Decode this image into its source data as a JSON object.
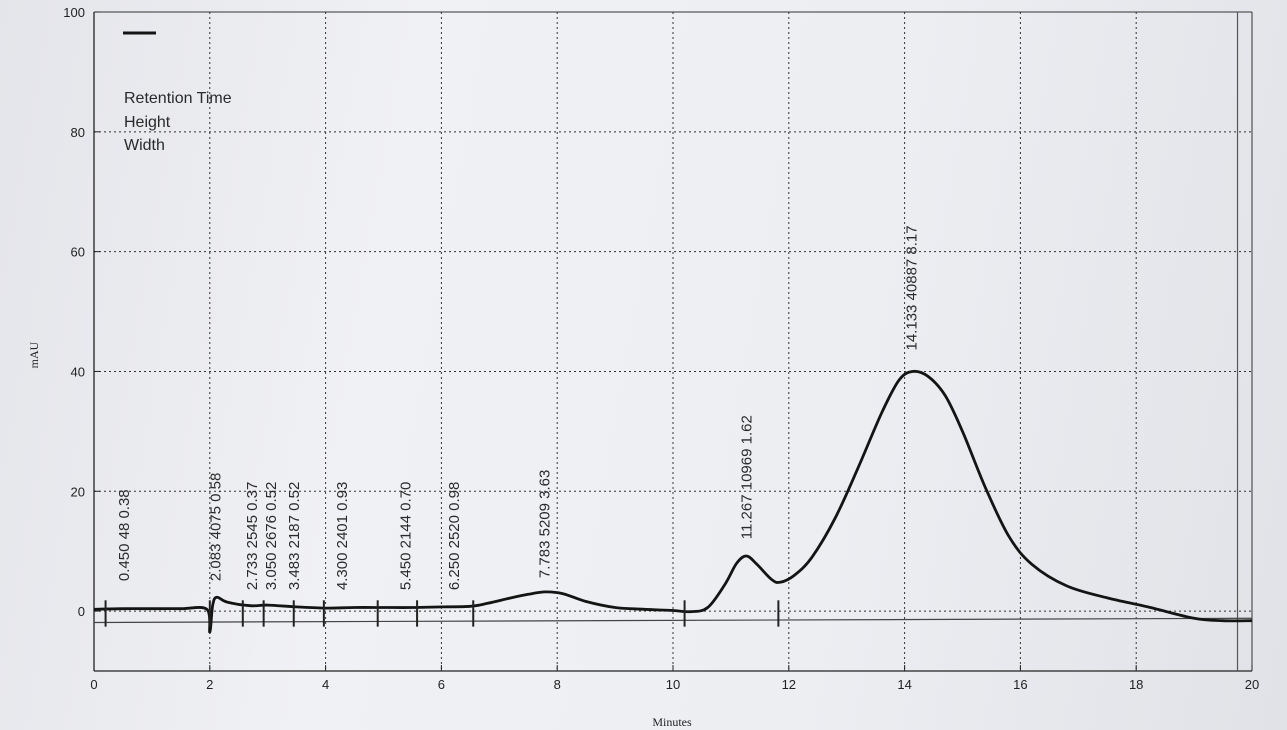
{
  "chart_data": {
    "type": "line",
    "xlabel": "Minutes",
    "ylabel": "mAU",
    "xlim": [
      0,
      20
    ],
    "ylim": [
      -10,
      100
    ],
    "x_ticks": [
      "0",
      "2",
      "4",
      "6",
      "8",
      "10",
      "12",
      "14",
      "16",
      "18",
      "20"
    ],
    "y_ticks": [
      "100",
      "80",
      "60",
      "40",
      "20",
      "0"
    ],
    "grid": true,
    "legend": {
      "placement": "top-left",
      "entries": [
        "Retention Time",
        "Height",
        "Width"
      ]
    },
    "series": [
      {
        "points": [
          [
            0.0,
            0.3
          ],
          [
            0.5,
            0.4
          ],
          [
            1.0,
            0.4
          ],
          [
            1.5,
            0.4
          ],
          [
            1.95,
            0.3
          ],
          [
            2.0,
            -3.5
          ],
          [
            2.05,
            1.0
          ],
          [
            2.12,
            2.3
          ],
          [
            2.3,
            1.5
          ],
          [
            2.7,
            0.9
          ],
          [
            3.0,
            1.0
          ],
          [
            3.5,
            0.7
          ],
          [
            4.0,
            0.5
          ],
          [
            4.5,
            0.6
          ],
          [
            5.0,
            0.6
          ],
          [
            5.5,
            0.6
          ],
          [
            6.0,
            0.7
          ],
          [
            6.5,
            0.8
          ],
          [
            6.8,
            1.3
          ],
          [
            7.2,
            2.2
          ],
          [
            7.5,
            2.8
          ],
          [
            7.8,
            3.2
          ],
          [
            8.1,
            2.9
          ],
          [
            8.5,
            1.6
          ],
          [
            9.0,
            0.6
          ],
          [
            9.5,
            0.3
          ],
          [
            10.0,
            0.1
          ],
          [
            10.3,
            -0.1
          ],
          [
            10.6,
            0.6
          ],
          [
            10.9,
            4.5
          ],
          [
            11.1,
            8.0
          ],
          [
            11.27,
            9.2
          ],
          [
            11.45,
            7.8
          ],
          [
            11.7,
            5.3
          ],
          [
            11.85,
            4.8
          ],
          [
            12.1,
            6.0
          ],
          [
            12.4,
            9.0
          ],
          [
            12.8,
            15.5
          ],
          [
            13.2,
            24.0
          ],
          [
            13.6,
            33.0
          ],
          [
            13.9,
            38.5
          ],
          [
            14.133,
            40.0
          ],
          [
            14.4,
            39.2
          ],
          [
            14.7,
            36.0
          ],
          [
            15.0,
            30.0
          ],
          [
            15.4,
            20.5
          ],
          [
            15.8,
            12.5
          ],
          [
            16.2,
            7.8
          ],
          [
            16.8,
            4.2
          ],
          [
            17.5,
            2.2
          ],
          [
            18.2,
            0.7
          ],
          [
            19.0,
            -1.2
          ],
          [
            19.5,
            -1.6
          ],
          [
            20.0,
            -1.6
          ]
        ]
      }
    ],
    "baseline": {
      "from": [
        0,
        -1.9
      ],
      "to": [
        20,
        -1.2
      ]
    },
    "peak_markers": [
      0.2,
      2.0,
      2.57,
      2.93,
      3.45,
      3.97,
      4.9,
      5.58,
      6.55,
      10.2,
      11.82
    ],
    "peaks": [
      {
        "rt": 0.45,
        "label": "0.450  48  0.38",
        "label_x": 0.52,
        "label_y": 5.0
      },
      {
        "rt": 2.083,
        "label": "2.083  4075  0.58",
        "label_x": 2.1,
        "label_y": 5.0
      },
      {
        "rt": 2.733,
        "label": "2.733  2545  0.37",
        "label_x": 2.73,
        "label_y": 3.5
      },
      {
        "rt": 3.05,
        "label": "3.050  2676  0.52",
        "label_x": 3.06,
        "label_y": 3.5
      },
      {
        "rt": 3.483,
        "label": "3.483  2187  0.52",
        "label_x": 3.45,
        "label_y": 3.5
      },
      {
        "rt": 4.3,
        "label": "4.300  2401  0.93",
        "label_x": 4.28,
        "label_y": 3.5
      },
      {
        "rt": 5.45,
        "label": "5.450  2144  0.70",
        "label_x": 5.38,
        "label_y": 3.5
      },
      {
        "rt": 6.25,
        "label": "6.250  2520  0.98",
        "label_x": 6.22,
        "label_y": 3.5
      },
      {
        "rt": 7.783,
        "label": "7.783  5209  3.63",
        "label_x": 7.78,
        "label_y": 5.5
      },
      {
        "rt": 11.267,
        "label": "11.267  10969  1.62",
        "label_x": 11.27,
        "label_y": 12.0
      },
      {
        "rt": 14.133,
        "label": "14.133  40887  8.17",
        "label_x": 14.12,
        "label_y": 43.5
      }
    ],
    "colors": {
      "trace": "#141414",
      "grid": "#333333",
      "paper": "#eceef2"
    }
  }
}
